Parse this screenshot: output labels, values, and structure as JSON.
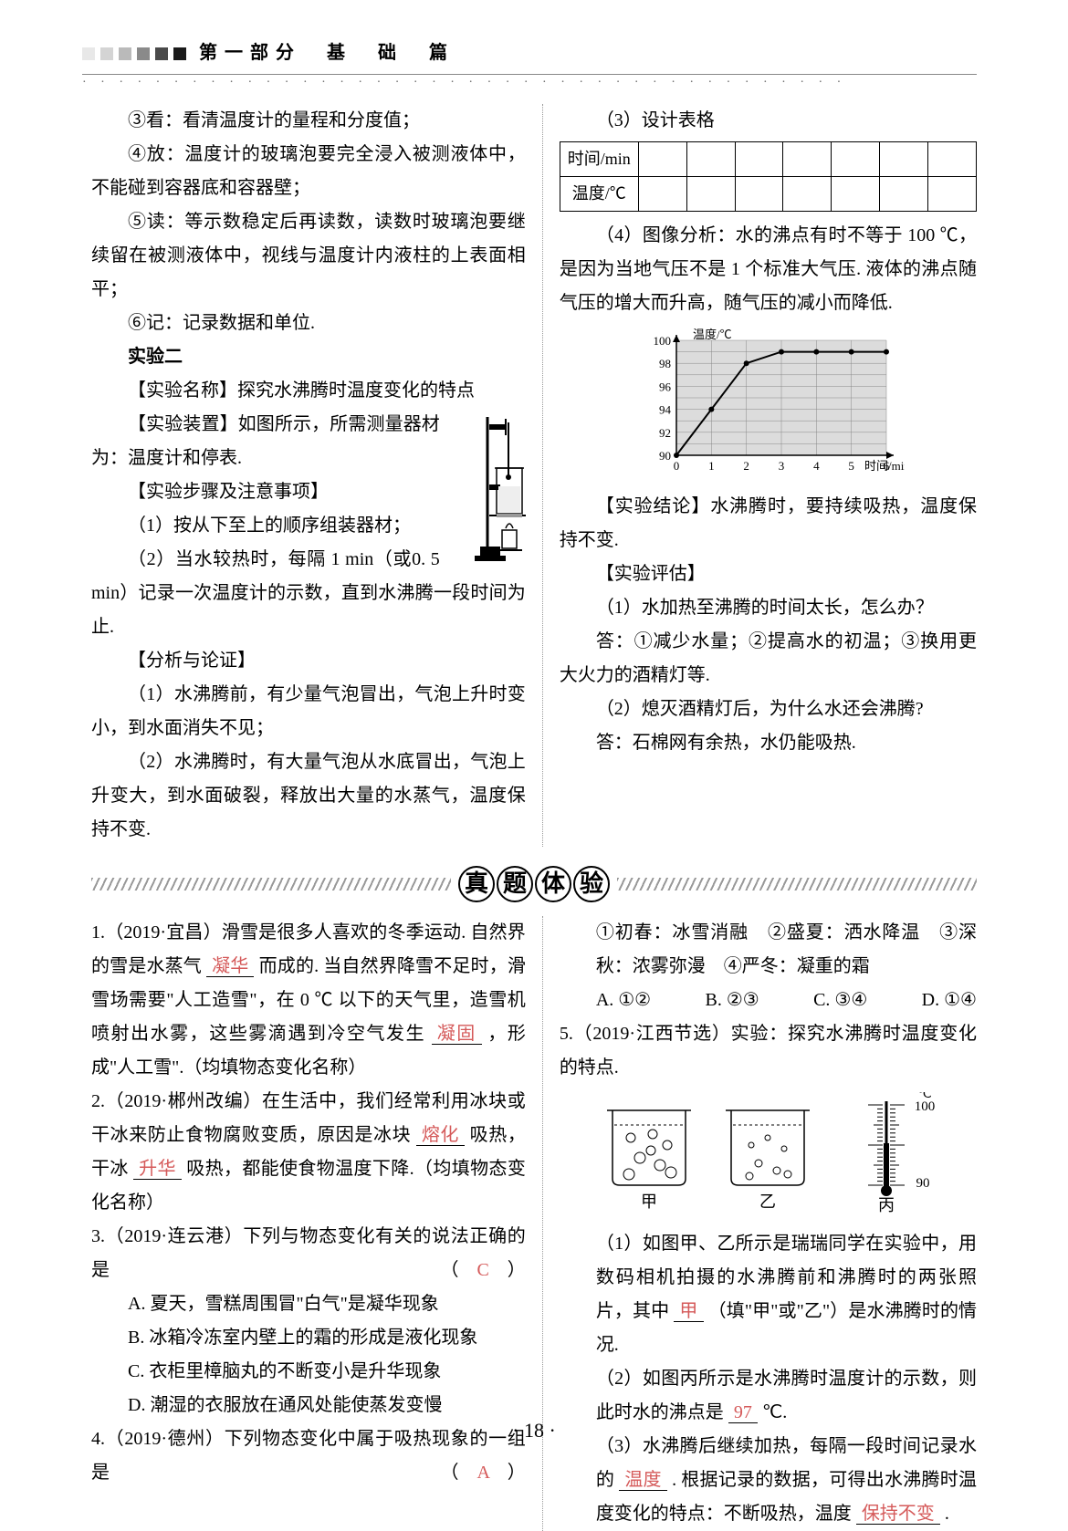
{
  "header": {
    "bars": [
      "#e8e8e8",
      "#d4d4d4",
      "#bababa",
      "#8a8a8a",
      "#4a4a4a",
      "#1a1a1a"
    ],
    "title": "第一部分　基　础　篇",
    "dots": "· · · · · · · · · · · · · · · · · · · · · · · · · · · · · · · · · · · · · · · · · ·"
  },
  "leftTop": {
    "p3": "③看：看清温度计的量程和分度值；",
    "p4": "④放：温度计的玻璃泡要完全浸入被测液体中，不能碰到容器底和容器壁；",
    "p5": "⑤读：等示数稳定后再读数，读数时玻璃泡要继续留在被测液体中，视线与温度计内液柱的上表面相平；",
    "p6": "⑥记：记录数据和单位.",
    "ex2": "实验二",
    "name": "【实验名称】探究水沸腾时温度变化的特点",
    "equip": "【实验装置】如图所示，所需测量器材为：温度计和停表.",
    "steps": "【实验步骤及注意事项】",
    "s1": "（1）按从下至上的顺序组装器材；",
    "s2": "（2）当水较热时，每隔 1  min（或0. 5 min）记录一次温度计的示数，直到水沸腾一段时间为止.",
    "anal": "【分析与论证】",
    "a1": "（1）水沸腾前，有少量气泡冒出，气泡上升时变小，到水面消失不见；",
    "a2": "（2）水沸腾时，有大量气泡从水底冒出，气泡上升变大，到水面破裂，释放出大量的水蒸气，温度保持不变."
  },
  "rightTop": {
    "t3": "（3）设计表格",
    "row1": "时间/min",
    "row2": "温度/℃",
    "t4": "（4）图像分析：水的沸点有时不等于 100 ℃，是因为当地气压不是 1 个标准大气压. 液体的沸点随气压的增大而升高，随气压的减小而降低.",
    "graph": {
      "ylabel": "温度/℃",
      "xlabel": "时间/min",
      "yticks": [
        90,
        92,
        94,
        96,
        98,
        100
      ],
      "xticks": [
        0,
        1,
        2,
        3,
        4,
        5,
        6
      ],
      "points": [
        [
          0,
          90
        ],
        [
          1,
          94
        ],
        [
          2,
          98
        ],
        [
          3,
          99
        ],
        [
          4,
          99
        ],
        [
          5,
          99
        ],
        [
          6,
          99
        ]
      ],
      "bg": "#dcdcdc",
      "grid": "#888",
      "line": "#000"
    },
    "concl": "【实验结论】水沸腾时，要持续吸热，温度保持不变.",
    "eval": "【实验评估】",
    "e1": "（1）水加热至沸腾的时间太长，怎么办？",
    "e1a": "答：①减少水量；②提高水的初温；③换用更大火力的酒精灯等.",
    "e2": "（2）熄灭酒精灯后，为什么水还会沸腾?",
    "e2a": "答：石棉网有余热，水仍能吸热."
  },
  "banner": [
    "真",
    "题",
    "体",
    "验"
  ],
  "q1": {
    "pre": "1.（2019·宜昌）滑雪是很多人喜欢的冬季运动. 自然界的雪是水蒸气",
    "b1": "凝华",
    "mid1": "而成的. 当自然界降雪不足时，滑雪场需要\"人工造雪\"，在 0 ℃ 以下的天气里，造雪机喷射出水雾，这些雾滴遇到冷空气发生",
    "b2": "凝固",
    "tail": "，形成\"人工雪\".（均填物态变化名称）"
  },
  "q2": {
    "pre": "2.（2019·郴州改编）在生活中，我们经常利用冰块或干冰来防止食物腐败变质，原因是冰块",
    "b1": "熔化",
    "mid": "吸热，干冰",
    "b2": "升华",
    "tail": "吸热，都能使食物温度下降.（均填物态变化名称）"
  },
  "q3": {
    "head": "3.（2019·连云港）下列与物态变化有关的说法正确的是",
    "ans": "C",
    "A": "A. 夏天，雪糕周围冒\"白气\"是凝华现象",
    "B": "B. 冰箱冷冻室内壁上的霜的形成是液化现象",
    "C": "C. 衣柜里樟脑丸的不断变小是升华现象",
    "D": "D. 潮湿的衣服放在通风处能使蒸发变慢"
  },
  "q4": {
    "head": "4.（2019·德州）下列物态变化中属于吸热现象的一组是",
    "ans": "A",
    "items": "①初春：冰雪消融　②盛夏：洒水降温　③深秋：浓雾弥漫　④严冬：凝重的霜",
    "opts": {
      "A": "A. ①②",
      "B": "B. ②③",
      "C": "C. ③④",
      "D": "D. ①④"
    }
  },
  "q5": {
    "head": "5.（2019·江西节选）实验：探究水沸腾时温度变化的特点.",
    "labels": {
      "jia": "甲",
      "yi": "乙",
      "bing": "丙",
      "t100": "100",
      "t90": "90",
      "unit": "℃"
    },
    "p1_pre": "（1）如图甲、乙所示是瑞瑞同学在实验中，用数码相机拍摄的水沸腾前和沸腾时的两张照片，其中",
    "p1_b": "甲",
    "p1_tail": "（填\"甲\"或\"乙\"）是水沸腾时的情况.",
    "p2_pre": "（2）如图丙所示是水沸腾时温度计的示数，则此时水的沸点是",
    "p2_b": "97",
    "p2_tail": "℃.",
    "p3_pre": "（3）水沸腾后继续加热，每隔一段时间记录水的",
    "p3_b1": "温度",
    "p3_mid": ". 根据记录的数据，可得出水沸腾时温度变化的特点：不断吸热，温度",
    "p3_b2": "保持不变",
    "p3_tail": "."
  },
  "pageNum": "· 18 ·"
}
